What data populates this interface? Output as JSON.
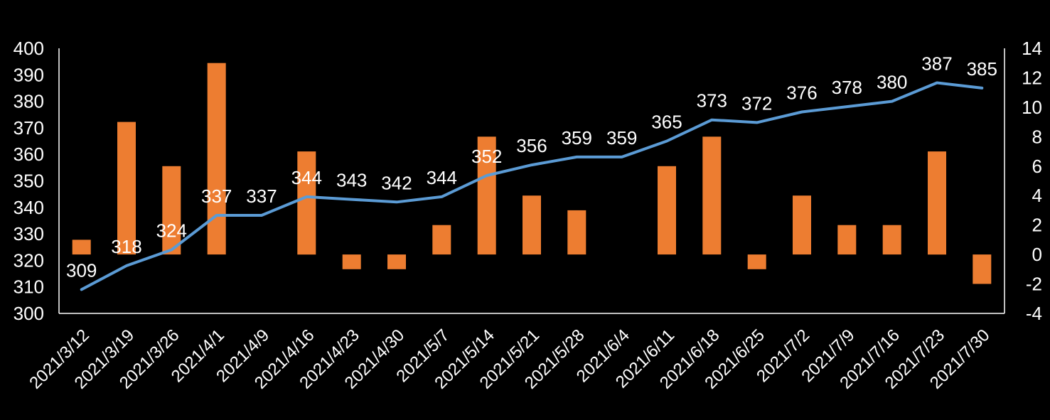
{
  "chart_data": {
    "type": "bar+line",
    "title": "",
    "categories": [
      "2021/3/12",
      "2021/3/19",
      "2021/3/26",
      "2021/4/1",
      "2021/4/9",
      "2021/4/16",
      "2021/4/23",
      "2021/4/30",
      "2021/5/7",
      "2021/5/14",
      "2021/5/21",
      "2021/5/28",
      "2021/6/4",
      "2021/6/11",
      "2021/6/18",
      "2021/6/25",
      "2021/7/2",
      "2021/7/9",
      "2021/7/16",
      "2021/7/23",
      "2021/7/30"
    ],
    "series": [
      {
        "name": "line",
        "type": "line",
        "axis": "left",
        "color": "#5B9BD5",
        "values": [
          309,
          318,
          324,
          337,
          337,
          344,
          343,
          342,
          344,
          352,
          356,
          359,
          359,
          365,
          373,
          372,
          376,
          378,
          380,
          387,
          385
        ],
        "labels": [
          "309",
          "318",
          "324",
          "337",
          "337",
          "344",
          "343",
          "342",
          "344",
          "352",
          "356",
          "359",
          "359",
          "365",
          "373",
          "372",
          "376",
          "378",
          "380",
          "387",
          "385"
        ]
      },
      {
        "name": "bars",
        "type": "bar",
        "axis": "right",
        "color": "#ED7D31",
        "values": [
          1,
          9,
          6,
          13,
          0,
          7,
          -1,
          -1,
          2,
          8,
          4,
          3,
          0,
          6,
          8,
          -1,
          4,
          2,
          2,
          7,
          -2
        ]
      }
    ],
    "y_left": {
      "min": 300,
      "max": 400,
      "ticks": [
        "300",
        "310",
        "320",
        "330",
        "340",
        "350",
        "360",
        "370",
        "380",
        "390",
        "400"
      ]
    },
    "y_right": {
      "min": -4,
      "max": 14,
      "ticks": [
        "-4",
        "-2",
        "0",
        "2",
        "4",
        "6",
        "8",
        "10",
        "12",
        "14"
      ]
    },
    "text_color": "#FFFFFF",
    "axis_color": "#FFFFFF",
    "background": "#000000"
  }
}
